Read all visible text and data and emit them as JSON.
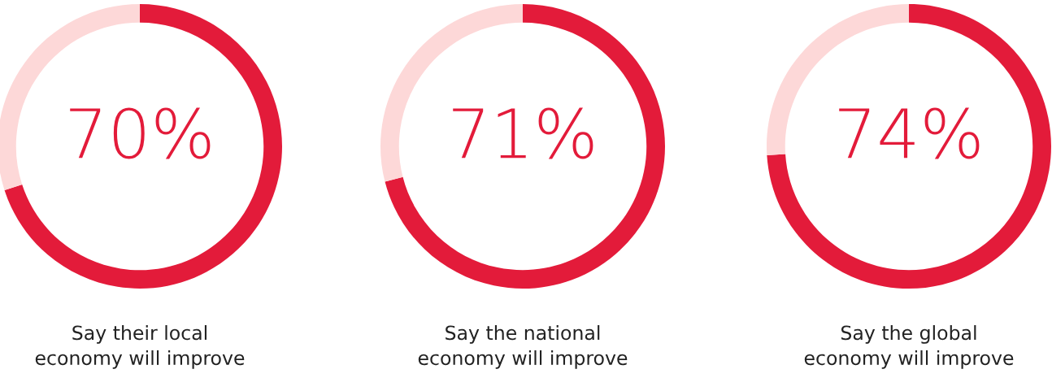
{
  "chart_data": [
    {
      "type": "donut",
      "title": "Say their local\neconomy will improve",
      "categories": [
        null,
        null
      ],
      "values": [
        70,
        30
      ],
      "colors": [
        "#e31b3a",
        "#fdd8d8"
      ],
      "value_labels": [
        "70%",
        null
      ]
    },
    {
      "type": "donut",
      "title": "Say the national\neconomy will improve",
      "categories": [
        null,
        null
      ],
      "values": [
        71,
        29
      ],
      "colors": [
        "#e31b3a",
        "#fdd8d8"
      ],
      "value_labels": [
        "71%",
        null
      ]
    },
    {
      "type": "donut",
      "title": "Say the global\neconomy will improve",
      "categories": [
        null,
        null
      ],
      "values": [
        74,
        26
      ],
      "colors": [
        "#e31b3a",
        "#fdd8d8"
      ],
      "value_labels": [
        "74%",
        null
      ]
    }
  ]
}
